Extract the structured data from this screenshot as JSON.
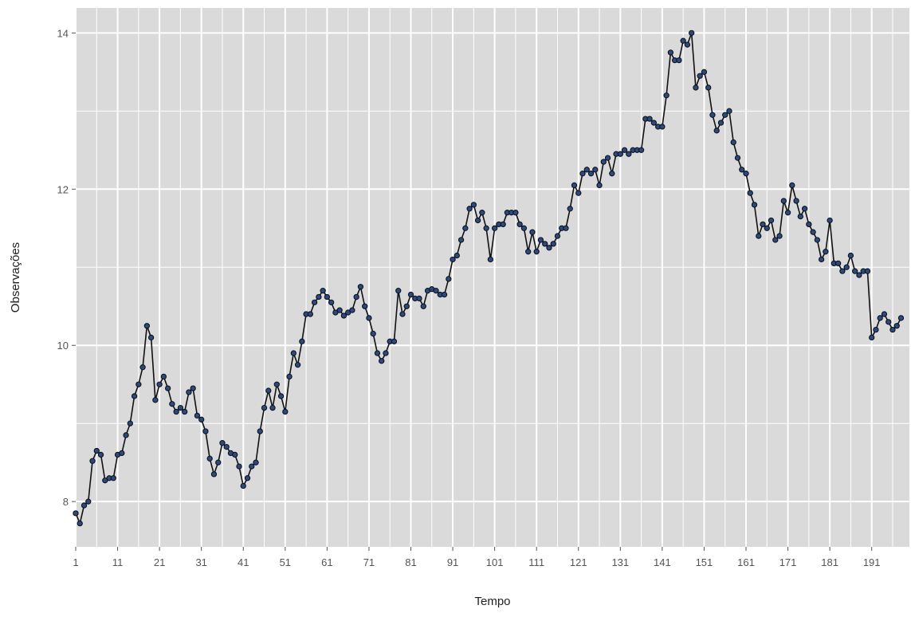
{
  "chart_data": {
    "type": "line",
    "title": "",
    "xlabel": "Tempo",
    "ylabel": "Observações",
    "xlim": [
      1,
      200
    ],
    "ylim": [
      7.42,
      14.32
    ],
    "x_ticks": [
      1,
      11,
      21,
      31,
      41,
      51,
      61,
      71,
      81,
      91,
      101,
      111,
      121,
      131,
      141,
      151,
      161,
      171,
      181,
      191
    ],
    "x_tick_labels": [
      "1",
      "11",
      "21",
      "31",
      "41",
      "51",
      "61",
      "71",
      "81",
      "91",
      "101",
      "111",
      "121",
      "131",
      "141",
      "151",
      "161",
      "171",
      "181",
      "191"
    ],
    "y_ticks": [
      8,
      10,
      12,
      14
    ],
    "y_tick_labels": [
      "8",
      "10",
      "12",
      "14"
    ],
    "grid": true,
    "colors": {
      "panel_background": "#dadada",
      "grid": "#ffffff",
      "line": "#111111",
      "point_fill": "#2e4a7a",
      "point_stroke": "#0b1220",
      "axis_tick": "#555555",
      "text": "#555555"
    },
    "series": [
      {
        "values": [
          7.85,
          7.72,
          7.95,
          8.0,
          8.52,
          8.65,
          8.6,
          8.27,
          8.3,
          8.3,
          8.6,
          8.62,
          8.85,
          9.0,
          9.35,
          9.5,
          9.72,
          10.25,
          10.1,
          9.3,
          9.5,
          9.6,
          9.45,
          9.25,
          9.15,
          9.2,
          9.15,
          9.4,
          9.45,
          9.1,
          9.05,
          8.9,
          8.55,
          8.35,
          8.5,
          8.75,
          8.7,
          8.62,
          8.6,
          8.45,
          8.2,
          8.3,
          8.45,
          8.5,
          8.9,
          9.2,
          9.42,
          9.2,
          9.5,
          9.35,
          9.15,
          9.6,
          9.9,
          9.75,
          10.05,
          10.4,
          10.4,
          10.55,
          10.62,
          10.7,
          10.62,
          10.55,
          10.42,
          10.45,
          10.38,
          10.42,
          10.45,
          10.62,
          10.75,
          10.5,
          10.35,
          10.15,
          9.9,
          9.8,
          9.9,
          10.05,
          10.05,
          10.7,
          10.4,
          10.5,
          10.65,
          10.6,
          10.6,
          10.5,
          10.7,
          10.72,
          10.7,
          10.65,
          10.65,
          10.85,
          11.1,
          11.15,
          11.35,
          11.5,
          11.75,
          11.8,
          11.6,
          11.7,
          11.5,
          11.1,
          11.5,
          11.55,
          11.55,
          11.7,
          11.7,
          11.7,
          11.55,
          11.5,
          11.2,
          11.45,
          11.2,
          11.35,
          11.3,
          11.25,
          11.3,
          11.4,
          11.5,
          11.5,
          11.75,
          12.05,
          11.95,
          12.2,
          12.25,
          12.2,
          12.25,
          12.05,
          12.35,
          12.4,
          12.2,
          12.45,
          12.45,
          12.5,
          12.45,
          12.5,
          12.5,
          12.5,
          12.9,
          12.9,
          12.85,
          12.8,
          12.8,
          13.2,
          13.75,
          13.65,
          13.65,
          13.9,
          13.85,
          14.0,
          13.3,
          13.45,
          13.5,
          13.3,
          12.95,
          12.75,
          12.85,
          12.95,
          13.0,
          12.6,
          12.4,
          12.25,
          12.2,
          11.95,
          11.8,
          11.4,
          11.55,
          11.5,
          11.6,
          11.35,
          11.4,
          11.85,
          11.7,
          12.05,
          11.85,
          11.65,
          11.75,
          11.55,
          11.45,
          11.35,
          11.1,
          11.2,
          11.6,
          11.05,
          11.05,
          10.95,
          11.0,
          11.15,
          10.95,
          10.9,
          10.95,
          10.95,
          10.1,
          10.2,
          10.35,
          10.4,
          10.3,
          10.2,
          10.25,
          10.35
        ]
      }
    ]
  }
}
